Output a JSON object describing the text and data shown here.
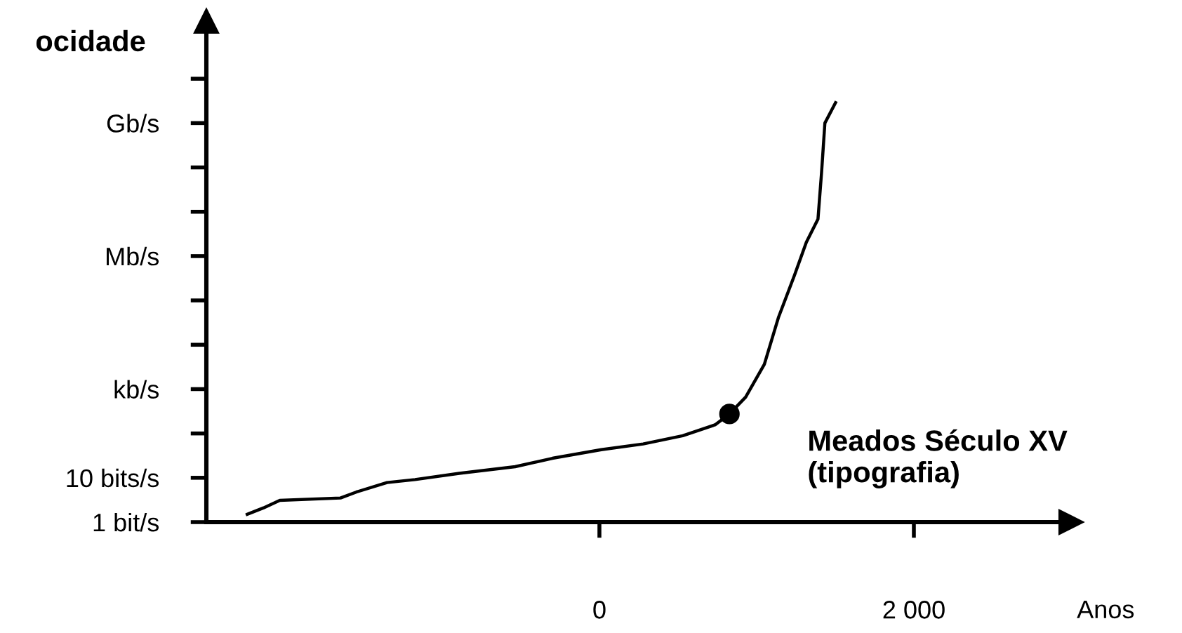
{
  "chart_data": {
    "type": "line",
    "ylabel": "ocidade",
    "xlabel": "Anos",
    "log": "y",
    "x": [
      -2240,
      -2136,
      -2033,
      -1647,
      -1544,
      -1351,
      -1173,
      -892,
      -536,
      -299,
      12,
      278,
      530,
      738,
      827,
      930,
      1049,
      1138,
      1241,
      1316,
      1390,
      1413,
      1434,
      1502
    ],
    "series": [
      {
        "color": "#000000",
        "values": [
          1.5,
          2.1,
          3.1,
          3.5,
          4.8,
          7.8,
          9.1,
          12.6,
          17.8,
          27.5,
          43,
          58,
          89,
          158,
          275,
          660,
          3630,
          40700,
          372000,
          2040000,
          6800000,
          78000000,
          1000000000,
          2900000000
        ]
      },
      {
        "type": "scatter",
        "color": "#000000",
        "x": [
          827
        ],
        "values": [
          275
        ],
        "marker": "circle"
      }
    ],
    "xlim": [
      -2500,
      3000
    ],
    "xticks": [
      {
        "value": 0,
        "label": "0"
      },
      {
        "value": 2000,
        "label": "2 000"
      }
    ],
    "ylim": [
      1,
      200000000000
    ],
    "yticks": [
      {
        "value": 1,
        "label": "1 bit/s"
      },
      {
        "value": 10,
        "label": "10 bits/s"
      },
      {
        "value": 100,
        "label": null
      },
      {
        "value": 1000,
        "label": "kb/s"
      },
      {
        "value": 10000,
        "label": null
      },
      {
        "value": 100000,
        "label": null
      },
      {
        "value": 1000000,
        "label": "Mb/s"
      },
      {
        "value": 10000000,
        "label": null
      },
      {
        "value": 100000000,
        "label": null
      },
      {
        "value": 1000000000,
        "label": "Gb/s"
      },
      {
        "value": 10000000000,
        "label": null
      }
    ],
    "annotations": [
      {
        "text": "Meados Século XV\n(tipografia)",
        "x": 827,
        "y": 275
      }
    ],
    "grid": false,
    "marker": "none",
    "line_style": "solid"
  }
}
